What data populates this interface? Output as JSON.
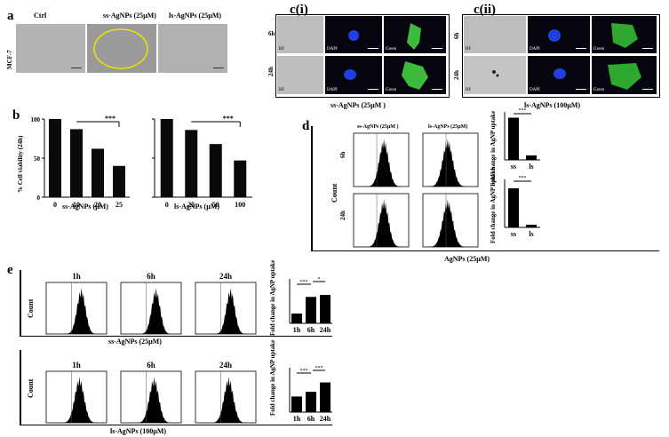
{
  "panel_labels": {
    "a": "a",
    "ci": "c(i)",
    "cii": "c(ii)",
    "b": "b",
    "d": "d",
    "e": "e"
  },
  "panel_a": {
    "cell_line": "MCF-7",
    "columns": [
      "Ctrl",
      "ss-AgNPs (25µM)",
      "ls-AgNPs (25µM)"
    ]
  },
  "panel_ci": {
    "rows": [
      "6h",
      "24h"
    ],
    "channels": [
      "BF",
      "DAPI",
      "Green"
    ],
    "caption": "ss-AgNPs (25µM )"
  },
  "panel_cii": {
    "rows": [
      "6h",
      "24h"
    ],
    "channels": [
      "BF",
      "DAPI",
      "Green"
    ],
    "caption": "ls-AgNPs (100µM)"
  },
  "panel_b": {
    "ylabel": "% Cell viability (24h)",
    "sig": "***",
    "y_ticks": [
      "0",
      "50",
      "100"
    ],
    "left": {
      "xlabel": "ss-AgNPs  (µM)",
      "categories": [
        "0",
        "10",
        "20",
        "25"
      ],
      "values": [
        100,
        87,
        62,
        40
      ]
    },
    "right": {
      "xlabel": "ls-AgNPs  (µM)",
      "categories": [
        "0",
        "25",
        "50",
        "100"
      ],
      "values": [
        100,
        86,
        68,
        47
      ]
    }
  },
  "panel_d": {
    "ylabel": "Count",
    "xlabel": "AgNPs (25µM)",
    "rows": [
      "6h",
      "24h"
    ],
    "col_titles": [
      "ss-AgNPs (25µM )",
      "ls-AgNPs (25µM)"
    ],
    "bar_ylabel": "Fold change in AgNP uptake",
    "bar_categories": [
      "ss",
      "ls"
    ],
    "bar_6h": [
      0.95,
      0.1
    ],
    "bar_24h": [
      0.88,
      0.06
    ],
    "bar_ymax": 1.0,
    "sig": "***"
  },
  "panel_e": {
    "ylabel": "Count",
    "time_labels": [
      "1h",
      "6h",
      "24h"
    ],
    "bar_ylabel": "Fold change in AgNP uptake",
    "top": {
      "caption": "ss-AgNPs (25µM)",
      "values": [
        1,
        2.7,
        2.9
      ],
      "ymax": 4,
      "sig": [
        "***",
        "*"
      ]
    },
    "bottom": {
      "caption": "ls-AgNPs (100µM)",
      "values": [
        1,
        1.3,
        1.9
      ],
      "ymax": 2.5,
      "sig": [
        "***",
        "***"
      ]
    }
  }
}
